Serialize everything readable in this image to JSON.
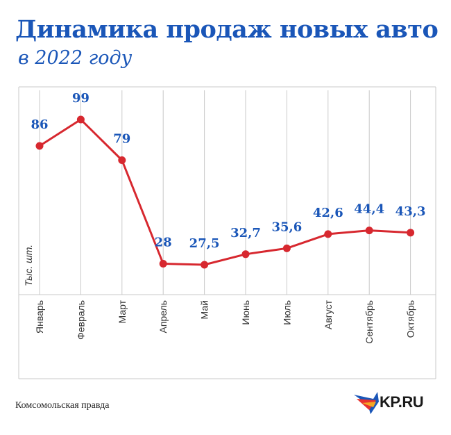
{
  "header": {
    "title": "Динамика продаж новых авто",
    "subtitle": "в 2022 году"
  },
  "footer": {
    "source": "Комсомольская правда",
    "logo_text": "KP.RU"
  },
  "colors": {
    "title": "#1a56b8",
    "line": "#d7282f",
    "value_label": "#1a56b8",
    "grid": "#c9c9c9"
  },
  "chart_data": {
    "type": "line",
    "title": "Динамика продаж новых авто",
    "subtitle": "в 2022 году",
    "ylabel": "Тыс. шт.",
    "categories": [
      "Январь",
      "Февраль",
      "Март",
      "Апрель",
      "Май",
      "Июнь",
      "Июль",
      "Август",
      "Сентябрь",
      "Октябрь"
    ],
    "values": [
      86,
      99,
      79,
      28,
      27.5,
      32.7,
      35.6,
      42.6,
      44.4,
      43.3
    ],
    "value_labels": [
      "86",
      "99",
      "79",
      "28",
      "27,5",
      "32,7",
      "35,6",
      "42,6",
      "44,4",
      "43,3"
    ],
    "ylim": [
      0,
      105
    ],
    "grid": "vertical",
    "legend": "none"
  }
}
